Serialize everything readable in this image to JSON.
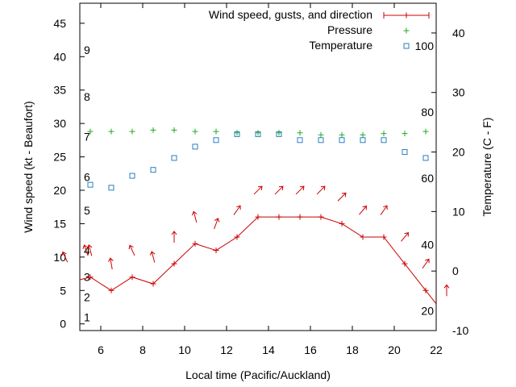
{
  "chart_data": {
    "type": "line",
    "x_label": "Local time (Pacific/Auckland)",
    "y_label": "Wind speed (kt - Beaufort)",
    "y2_label": "Temperature (C - F)",
    "x_range": [
      5,
      22
    ],
    "x_ticks": [
      6,
      8,
      10,
      12,
      14,
      16,
      18,
      20,
      22
    ],
    "y_range": [
      -1,
      48
    ],
    "y_ticks": [
      0,
      5,
      10,
      15,
      20,
      25,
      30,
      35,
      40,
      45
    ],
    "y2_range": [
      -10,
      45
    ],
    "y2_ticks": [
      -10,
      0,
      10,
      20,
      30,
      40
    ],
    "beaufort_labels": [
      {
        "text": "1",
        "kt": 1
      },
      {
        "text": "2",
        "kt": 4
      },
      {
        "text": "3",
        "kt": 7
      },
      {
        "text": "4",
        "kt": 11
      },
      {
        "text": "5",
        "kt": 17
      },
      {
        "text": "6",
        "kt": 22
      },
      {
        "text": "7",
        "kt": 28
      },
      {
        "text": "8",
        "kt": 34
      },
      {
        "text": "9",
        "kt": 41
      }
    ],
    "fahrenheit_labels": [
      {
        "text": "20",
        "degC": -6.7
      },
      {
        "text": "40",
        "degC": 4.4
      },
      {
        "text": "60",
        "degC": 15.6
      },
      {
        "text": "80",
        "degC": 26.7
      },
      {
        "text": "100",
        "degC": 37.8
      }
    ],
    "grid": false,
    "legend_position": "top-right",
    "series": [
      {
        "name": "Wind speed, gusts, and direction",
        "color": "#cc0000",
        "marker": "plus-line",
        "x": [
          5,
          5.5,
          6.5,
          7.5,
          8.5,
          9.5,
          10.5,
          11.5,
          12.5,
          13.5,
          14.5,
          15.5,
          16.5,
          17.5,
          18.5,
          19.5,
          20.5,
          21.5,
          22
        ],
        "y": [
          6.6,
          7,
          5,
          7,
          6,
          9,
          12,
          11,
          13,
          16,
          16,
          16,
          16,
          15,
          13,
          13,
          9,
          5,
          3
        ]
      },
      {
        "name": "Pressure",
        "color": "#22aa22",
        "marker": "plus",
        "x": [
          5.5,
          6.5,
          7.5,
          8.5,
          9.5,
          10.5,
          11.5,
          12.5,
          13.5,
          14.5,
          15.5,
          16.5,
          17.5,
          18.5,
          19.5,
          20.5,
          21.5
        ],
        "y": [
          28.8,
          28.8,
          28.8,
          29.0,
          29.0,
          28.8,
          28.8,
          28.6,
          28.6,
          28.6,
          28.6,
          28.3,
          28.3,
          28.3,
          28.5,
          28.5,
          28.8
        ]
      },
      {
        "name": "Temperature",
        "color": "#2a7fbf",
        "marker": "square",
        "axis": "y2",
        "x": [
          5.5,
          6.5,
          7.5,
          8.5,
          9.5,
          10.5,
          11.5,
          12.5,
          13.5,
          14.5,
          15.5,
          16.5,
          17.5,
          18.5,
          19.5,
          20.5,
          21.5
        ],
        "y": [
          14.5,
          14,
          16,
          17,
          19,
          20.9,
          22,
          23,
          23,
          23,
          22,
          22,
          22,
          22,
          22,
          20,
          19
        ]
      }
    ],
    "wind_arrows": {
      "color": "#cc0000",
      "x": [
        4.3,
        5.3,
        5.5,
        6.5,
        7.5,
        8.5,
        9.5,
        10.5,
        11.5,
        12.5,
        13.5,
        14.5,
        15.5,
        16.5,
        17.5,
        18.5,
        19.5,
        20.5,
        21.5,
        22.5
      ],
      "kt": [
        10,
        11,
        11,
        9,
        11,
        10,
        13,
        16,
        15,
        17,
        20,
        20,
        20,
        20,
        19,
        17,
        17,
        13,
        9,
        5
      ],
      "rotation_deg": [
        -25,
        -20,
        -15,
        -10,
        -25,
        -15,
        0,
        -15,
        20,
        35,
        45,
        45,
        45,
        45,
        45,
        40,
        35,
        40,
        35,
        0
      ]
    }
  }
}
